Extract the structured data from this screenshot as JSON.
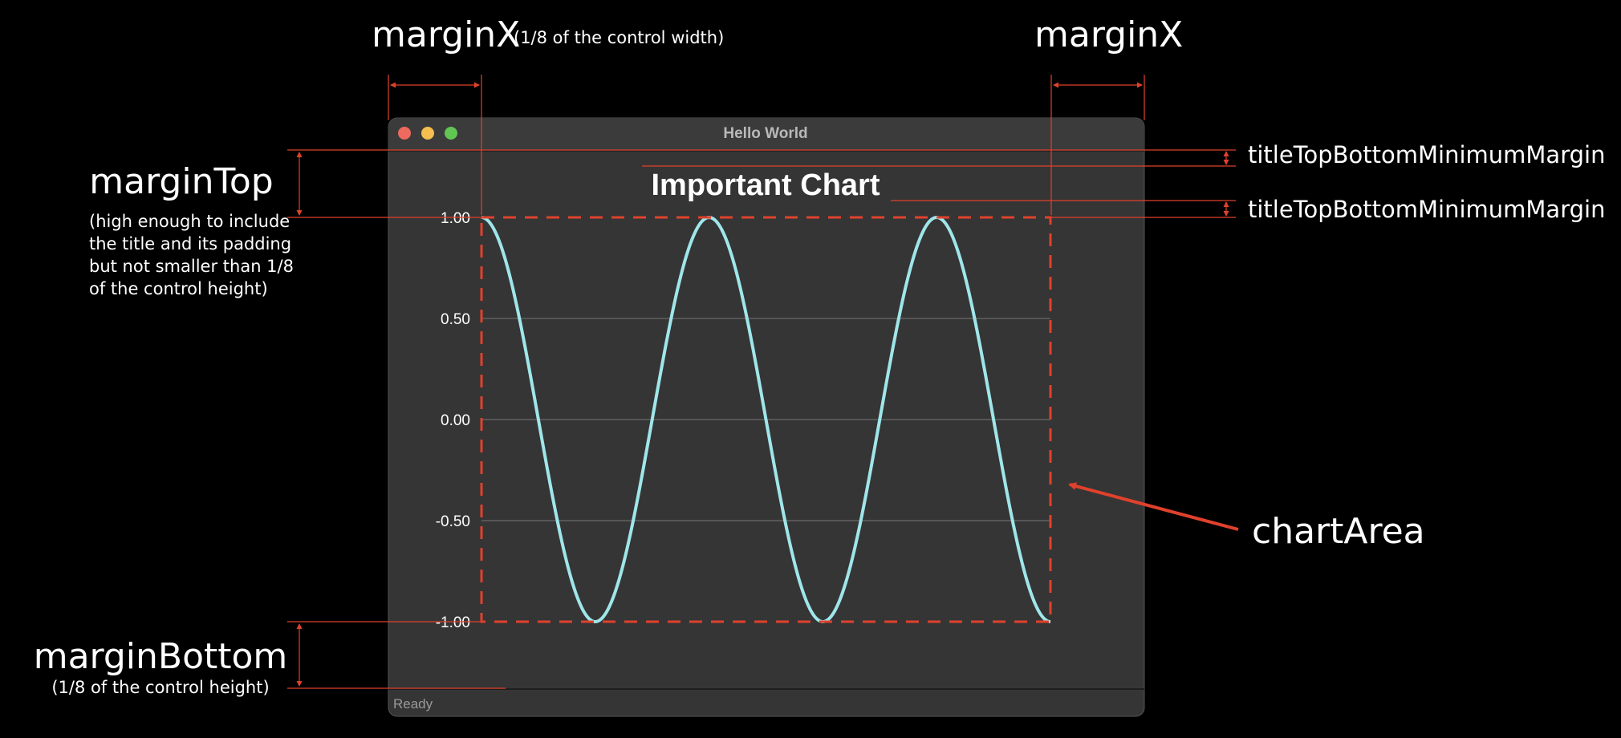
{
  "window": {
    "title": "Hello World",
    "status_text": "Ready",
    "traffic_lights": [
      "#ec6a5e",
      "#f4bf4f",
      "#61c554"
    ]
  },
  "chart_data": {
    "type": "line",
    "title": "Important Chart",
    "xlabel": "",
    "ylabel": "",
    "ylim": [
      -1.0,
      1.0
    ],
    "y_ticks": [
      "1.00",
      "0.50",
      "0.00",
      "-0.50",
      "-1.00"
    ],
    "grid": true,
    "series": [
      {
        "color": "#9fe6ea",
        "function": "cosine",
        "cycles": 2.5,
        "x": [
          0,
          0.5,
          1,
          1.5,
          2,
          2.5
        ],
        "y": [
          1.0,
          -1.0,
          1.0,
          -1.0,
          1.0,
          -1.0
        ]
      }
    ]
  },
  "annotations": {
    "margin_x_left": "marginX",
    "margin_x_left_note": "(1/8 of the control width)",
    "margin_x_right": "marginX",
    "margin_top": "marginTop",
    "margin_top_note": [
      "(high enough to include",
      "the title and its padding",
      "but not smaller than 1/8",
      "of the control height)"
    ],
    "margin_bottom": "marginBottom",
    "margin_bottom_note": "(1/8 of the control height)",
    "title_margin_1": "titleTopBottomMinimumMargin",
    "title_margin_2": "titleTopBottomMinimumMargin",
    "chart_area": "chartArea",
    "accent_color": "#e0412c"
  }
}
